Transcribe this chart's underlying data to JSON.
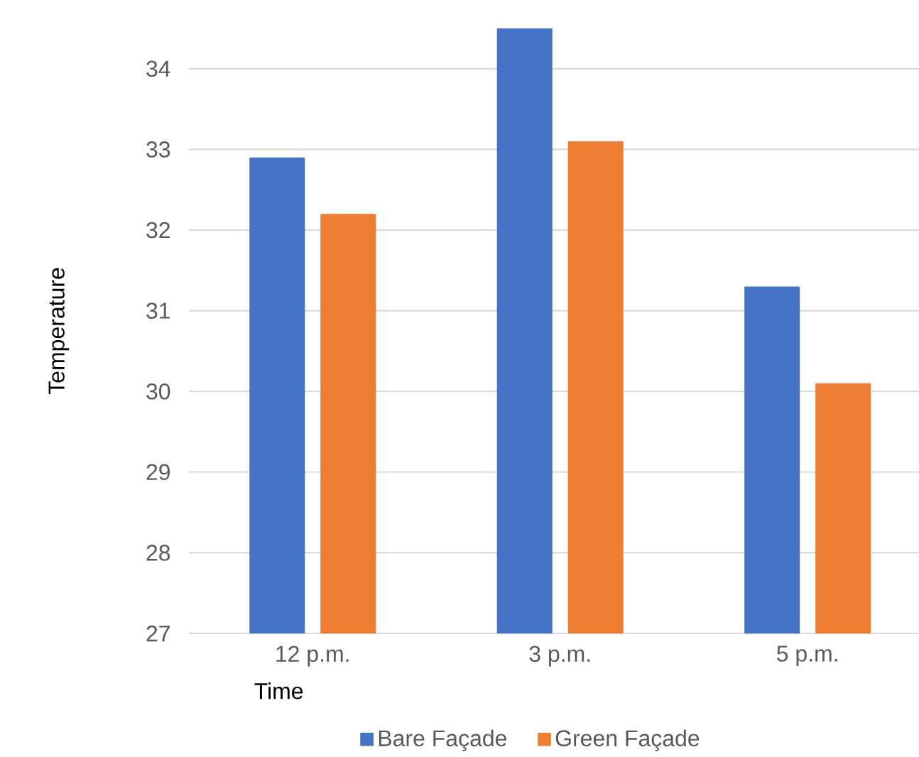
{
  "chart_data": {
    "type": "bar",
    "xlabel": "Time",
    "ylabel": "Temperature",
    "categories": [
      "12 p.m.",
      "3 p.m.",
      "5 p.m."
    ],
    "series": [
      {
        "name": "Bare Façade",
        "color": "#4472c4",
        "values": [
          32.9,
          34.5,
          31.3
        ]
      },
      {
        "name": "Green Façade",
        "color": "#ed7d31",
        "values": [
          32.2,
          33.1,
          30.1
        ]
      }
    ],
    "ylim": [
      27,
      34.5
    ],
    "yticks": [
      27,
      28,
      29,
      30,
      31,
      32,
      33,
      34
    ],
    "grid": "y",
    "legend": "bottom"
  }
}
